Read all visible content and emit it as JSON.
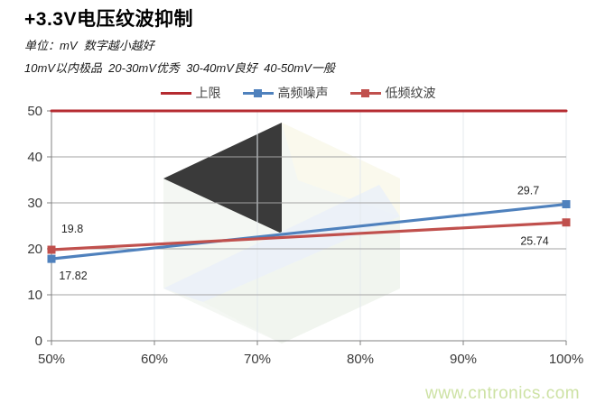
{
  "title": "+3.3V电压纹波抑制",
  "subtitle_unit": "单位：mV  数字越小越好",
  "subtitle_scale": "10mV以内极品  20-30mV优秀  30-40mV良好  40-50mV一般",
  "watermark_text": "www.cntronics.com",
  "colors": {
    "upper_limit_red": "#b52b30",
    "series_blue": "#4f81bd",
    "series_red": "#c0504d",
    "grid_gray": "#a3a3a3",
    "grid_vertical": "#e4e9ee",
    "axis_gray": "#808080",
    "tick_label": "#3a3a3a",
    "data_label": "#262626",
    "watermark_text_green": "#cde2a4"
  },
  "legend": {
    "items": [
      {
        "label": "上限"
      },
      {
        "label": "高频噪声"
      },
      {
        "label": "低频纹波"
      }
    ]
  },
  "chart_data": {
    "type": "line",
    "title": "+3.3V电压纹波抑制",
    "unit": "mV",
    "x_ticks": [
      "50%",
      "60%",
      "70%",
      "80%",
      "90%",
      "100%"
    ],
    "x_range_pct": [
      50,
      100
    ],
    "ylim": [
      0,
      50
    ],
    "y_ticks": [
      0,
      10,
      20,
      30,
      40,
      50
    ],
    "grid": true,
    "legend_position": "top",
    "series": [
      {
        "name": "上限",
        "color": "#b52b30",
        "marker": "none",
        "stroke_width": 3,
        "points": [
          {
            "x_pct": 50,
            "y": 50
          },
          {
            "x_pct": 100,
            "y": 50
          }
        ]
      },
      {
        "name": "高频噪声",
        "color": "#4f81bd",
        "marker": "square",
        "stroke_width": 3.2,
        "points": [
          {
            "x_pct": 50,
            "y": 17.82,
            "label": "17.82",
            "label_dx": 24,
            "label_dy": 23
          },
          {
            "x_pct": 100,
            "y": 29.7,
            "label": "29.7",
            "label_dx": -42,
            "label_dy": -11
          }
        ]
      },
      {
        "name": "低频纹波",
        "color": "#c0504d",
        "marker": "square",
        "stroke_width": 3.2,
        "points": [
          {
            "x_pct": 50,
            "y": 19.8,
            "label": "19.8",
            "label_dx": 23,
            "label_dy": -19
          },
          {
            "x_pct": 100,
            "y": 25.74,
            "label": "25.74",
            "label_dx": -35,
            "label_dy": 25
          }
        ]
      }
    ]
  }
}
